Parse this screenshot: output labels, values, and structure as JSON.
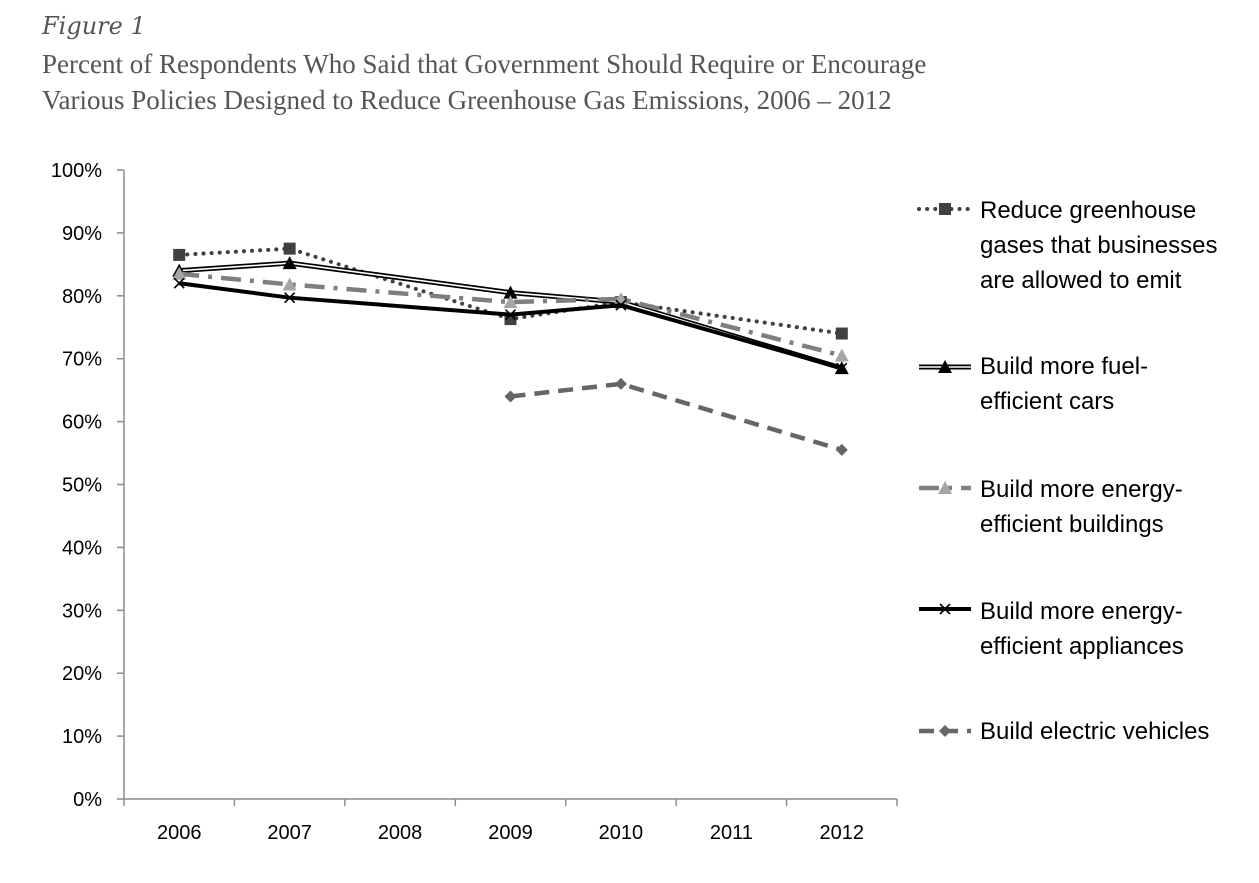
{
  "figure_label": "Figure 1",
  "title_line1": "Percent of Respondents Who Said that Government Should Require or Encourage",
  "title_line2": "Various Policies Designed to Reduce Greenhouse Gas Emissions, 2006 – 2012",
  "chart_data": {
    "type": "line",
    "x": [
      2006,
      2007,
      2008,
      2009,
      2010,
      2011,
      2012
    ],
    "x_tick_labels": [
      "2006",
      "2007",
      "2008",
      "2009",
      "2010",
      "2011",
      "2012"
    ],
    "ylim": [
      0,
      100
    ],
    "y_ticks": [
      0,
      10,
      20,
      30,
      40,
      50,
      60,
      70,
      80,
      90,
      100
    ],
    "y_tick_labels": [
      "0%",
      "10%",
      "20%",
      "30%",
      "40%",
      "50%",
      "60%",
      "70%",
      "80%",
      "90%",
      "100%"
    ],
    "grid": false,
    "legend_position": "right",
    "series": [
      {
        "name": "Reduce greenhouse gases that businesses are allowed to emit",
        "legend_lines": [
          "Reduce greenhouse",
          "gases that businesses",
          "are allowed to emit"
        ],
        "points": [
          [
            2006,
            86.5
          ],
          [
            2007,
            87.5
          ],
          [
            2009,
            76.3
          ],
          [
            2010,
            79.0
          ],
          [
            2012,
            74.0
          ]
        ],
        "color": "#404040",
        "marker": "square",
        "line_style": "dotted"
      },
      {
        "name": "Build more fuel-efficient cars",
        "legend_lines": [
          "Build more fuel-",
          "efficient cars"
        ],
        "points": [
          [
            2006,
            84.0
          ],
          [
            2007,
            85.2
          ],
          [
            2009,
            80.5
          ],
          [
            2010,
            79.0
          ],
          [
            2012,
            68.5
          ]
        ],
        "color": "#000000",
        "marker": "triangle",
        "line_style": "double"
      },
      {
        "name": "Build more energy-efficient buildings",
        "legend_lines": [
          "Build more energy-",
          "efficient buildings"
        ],
        "points": [
          [
            2006,
            83.5
          ],
          [
            2007,
            81.8
          ],
          [
            2009,
            79.0
          ],
          [
            2010,
            79.5
          ],
          [
            2012,
            70.5
          ]
        ],
        "color": "#7f7f7f",
        "marker": "triangle",
        "line_style": "dashdot"
      },
      {
        "name": "Build more energy-efficient appliances",
        "legend_lines": [
          "Build more energy-",
          "efficient appliances"
        ],
        "points": [
          [
            2006,
            82.0
          ],
          [
            2007,
            79.7
          ],
          [
            2009,
            77.0
          ],
          [
            2010,
            78.5
          ],
          [
            2012,
            68.5
          ]
        ],
        "color": "#000000",
        "marker": "x",
        "line_style": "solid"
      },
      {
        "name": "Build electric vehicles",
        "legend_lines": [
          "Build electric vehicles"
        ],
        "points": [
          [
            2009,
            64.0
          ],
          [
            2010,
            66.0
          ],
          [
            2012,
            55.5
          ]
        ],
        "color": "#666666",
        "marker": "diamond",
        "line_style": "dashed"
      }
    ]
  }
}
